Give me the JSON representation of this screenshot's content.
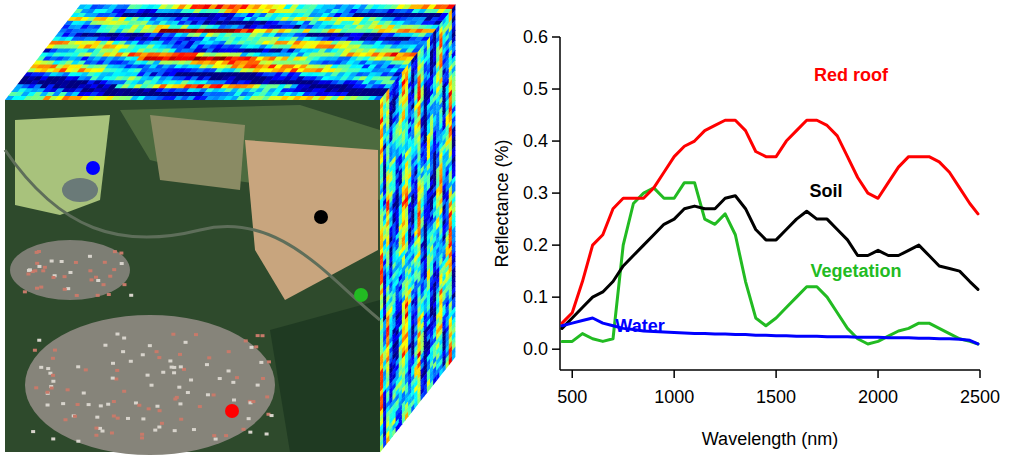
{
  "chart_data": {
    "type": "line",
    "x_label": "Wavelength (nm)",
    "y_label": "Reflectance (%)",
    "x": [
      450,
      500,
      550,
      600,
      650,
      700,
      750,
      800,
      850,
      900,
      950,
      1000,
      1050,
      1100,
      1150,
      1200,
      1250,
      1300,
      1350,
      1400,
      1450,
      1500,
      1550,
      1600,
      1650,
      1700,
      1750,
      1800,
      1850,
      1900,
      1950,
      2000,
      2050,
      2100,
      2150,
      2200,
      2250,
      2300,
      2350,
      2400,
      2450,
      2490
    ],
    "series": [
      {
        "name": "Red roof",
        "color": "#ff0000",
        "values": [
          0.05,
          0.07,
          0.13,
          0.2,
          0.22,
          0.27,
          0.29,
          0.29,
          0.29,
          0.31,
          0.34,
          0.37,
          0.39,
          0.4,
          0.42,
          0.43,
          0.44,
          0.44,
          0.42,
          0.38,
          0.37,
          0.37,
          0.4,
          0.42,
          0.44,
          0.44,
          0.43,
          0.41,
          0.37,
          0.33,
          0.3,
          0.29,
          0.32,
          0.35,
          0.37,
          0.37,
          0.37,
          0.36,
          0.34,
          0.31,
          0.28,
          0.26
        ]
      },
      {
        "name": "Soil",
        "color": "#000000",
        "values": [
          0.04,
          0.06,
          0.08,
          0.1,
          0.11,
          0.13,
          0.16,
          0.18,
          0.2,
          0.22,
          0.24,
          0.25,
          0.27,
          0.275,
          0.27,
          0.27,
          0.29,
          0.295,
          0.27,
          0.23,
          0.21,
          0.21,
          0.23,
          0.25,
          0.265,
          0.25,
          0.25,
          0.23,
          0.21,
          0.18,
          0.18,
          0.19,
          0.18,
          0.18,
          0.19,
          0.2,
          0.18,
          0.16,
          0.155,
          0.15,
          0.13,
          0.115
        ]
      },
      {
        "name": "Vegetation",
        "color": "#22bb22",
        "values": [
          0.015,
          0.015,
          0.03,
          0.02,
          0.015,
          0.02,
          0.2,
          0.28,
          0.3,
          0.31,
          0.29,
          0.29,
          0.32,
          0.32,
          0.25,
          0.24,
          0.26,
          0.22,
          0.13,
          0.06,
          0.045,
          0.06,
          0.08,
          0.1,
          0.12,
          0.12,
          0.1,
          0.07,
          0.04,
          0.02,
          0.01,
          0.015,
          0.025,
          0.035,
          0.04,
          0.05,
          0.05,
          0.04,
          0.03,
          0.02,
          0.015,
          0.01
        ]
      },
      {
        "name": "Water",
        "color": "#0000ff",
        "values": [
          0.045,
          0.05,
          0.055,
          0.06,
          0.05,
          0.045,
          0.04,
          0.038,
          0.035,
          0.034,
          0.033,
          0.032,
          0.031,
          0.03,
          0.03,
          0.029,
          0.029,
          0.028,
          0.028,
          0.027,
          0.027,
          0.026,
          0.026,
          0.025,
          0.025,
          0.025,
          0.024,
          0.024,
          0.024,
          0.023,
          0.023,
          0.023,
          0.022,
          0.022,
          0.022,
          0.021,
          0.021,
          0.02,
          0.02,
          0.019,
          0.017,
          0.01
        ]
      }
    ],
    "xlim": [
      440,
      2500
    ],
    "xticks": [
      500,
      1000,
      1500,
      2000,
      2500
    ],
    "ylim": [
      -0.04,
      0.6
    ],
    "yticks": [
      {
        "value": 0,
        "label": "0.0"
      },
      {
        "value": 0.1,
        "label": "0.1"
      },
      {
        "value": 0.2,
        "label": "0.2"
      },
      {
        "value": 0.3,
        "label": "0.3"
      },
      {
        "value": 0.4,
        "label": "0.4"
      },
      {
        "value": 0.5,
        "label": "0.5"
      },
      {
        "value": 0.6,
        "label": "0.6"
      }
    ],
    "grid": false
  }
}
